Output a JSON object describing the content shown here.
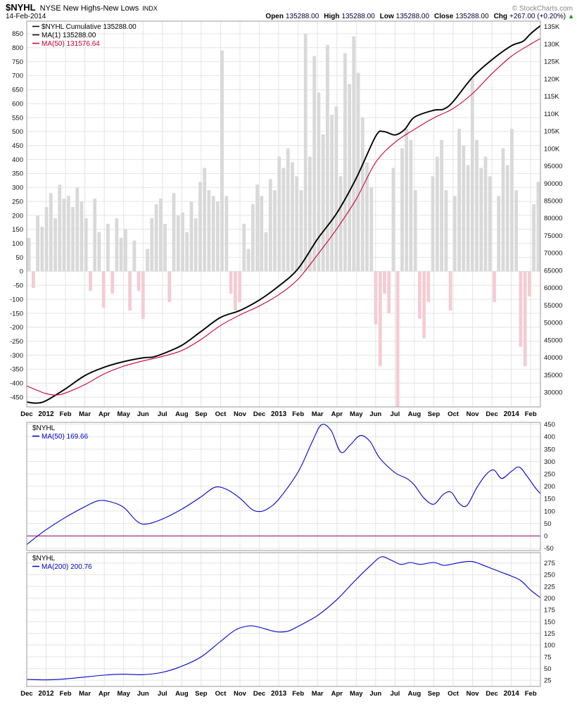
{
  "header": {
    "symbol": "$NYHL",
    "description": "NYSE New Highs-New Lows",
    "exchange": "INDX",
    "date": "14-Feb-2014",
    "copyright": "© StockCharts.com",
    "quote": {
      "open_label": "Open",
      "open": "135288.00",
      "high_label": "High",
      "high": "135288.00",
      "low_label": "Low",
      "low": "135288.00",
      "close_label": "Close",
      "close": "135288.00",
      "chg_label": "Chg",
      "chg": "+267.00 (+0.20%)",
      "arrow": "▲"
    }
  },
  "chart_data": {
    "type": "line",
    "x_total_months": 26.5,
    "x_ticks": [
      "Dec",
      "2012",
      "Feb",
      "Mar",
      "Apr",
      "May",
      "Jun",
      "Jul",
      "Aug",
      "Sep",
      "Oct",
      "Nov",
      "Dec",
      "2013",
      "Feb",
      "Mar",
      "Apr",
      "May",
      "Jun",
      "Jul",
      "Aug",
      "Sep",
      "Oct",
      "Nov",
      "Dec",
      "2014",
      "Feb"
    ],
    "x_year_indices": [
      1,
      13,
      25
    ],
    "colors": {
      "grid": "#e4e4e4",
      "border": "#9a9a9a",
      "hist_pos": "#d9d9d9",
      "hist_neg": "#f4ccd4",
      "up": "#009900"
    },
    "panels": [
      {
        "id": "main",
        "axes": {
          "left": {
            "ticks": [
              850,
              800,
              750,
              700,
              650,
              600,
              550,
              500,
              450,
              400,
              350,
              300,
              250,
              200,
              150,
              100,
              50,
              0,
              -50,
              -100,
              -150,
              -200,
              -250,
              -300,
              -350,
              -400,
              -450
            ],
            "domain": [
              -485,
              895
            ]
          },
          "right": {
            "ticks": [
              {
                "label": "135K",
                "value": 135000
              },
              {
                "label": "130K",
                "value": 130000
              },
              {
                "label": "125K",
                "value": 125000
              },
              {
                "label": "120K",
                "value": 120000
              },
              {
                "label": "115K",
                "value": 115000
              },
              {
                "label": "110K",
                "value": 110000
              },
              {
                "label": "105K",
                "value": 105000
              },
              {
                "label": "100K",
                "value": 100000
              },
              {
                "label": "95000",
                "value": 95000
              },
              {
                "label": "90000",
                "value": 90000
              },
              {
                "label": "85000",
                "value": 85000
              },
              {
                "label": "80000",
                "value": 80000
              },
              {
                "label": "75000",
                "value": 75000
              },
              {
                "label": "70000",
                "value": 70000
              },
              {
                "label": "65000",
                "value": 65000
              },
              {
                "label": "60000",
                "value": 60000
              },
              {
                "label": "55000",
                "value": 55000
              },
              {
                "label": "50000",
                "value": 50000
              },
              {
                "label": "45000",
                "value": 45000
              },
              {
                "label": "40000",
                "value": 40000
              },
              {
                "label": "35000",
                "value": 35000
              },
              {
                "label": "30000",
                "value": 30000
              }
            ],
            "domain": [
              25800,
              136600
            ]
          }
        },
        "legend": [
          {
            "label": "$NYHL Cumulative 135288.00",
            "color": "#000000"
          },
          {
            "label": "MA(1) 135288.00",
            "color": "#000000"
          },
          {
            "label": "MA(50) 131576.64",
            "color": "#cc0033"
          }
        ],
        "histogram": {
          "axis": "left",
          "values": [
            120,
            -60,
            200,
            160,
            230,
            280,
            190,
            310,
            260,
            270,
            230,
            300,
            250,
            190,
            -70,
            260,
            140,
            -130,
            170,
            -80,
            190,
            120,
            150,
            -140,
            110,
            -70,
            -170,
            80,
            190,
            240,
            260,
            170,
            -110,
            280,
            200,
            210,
            140,
            250,
            190,
            320,
            370,
            290,
            270,
            250,
            790,
            270,
            -80,
            -140,
            -110,
            170,
            80,
            240,
            310,
            270,
            140,
            330,
            290,
            410,
            370,
            440,
            390,
            340,
            290,
            850,
            410,
            770,
            640,
            490,
            810,
            560,
            590,
            340,
            780,
            670,
            840,
            710,
            550,
            390,
            300,
            -190,
            -340,
            -80,
            -150,
            370,
            -500,
            440,
            510,
            470,
            290,
            -170,
            -240,
            -110,
            340,
            410,
            470,
            290,
            -140,
            270,
            510,
            450,
            380,
            690,
            470,
            370,
            410,
            340,
            -110,
            270,
            440,
            380,
            510,
            290,
            -270,
            -340,
            -90,
            240,
            320
          ]
        },
        "series": [
          {
            "name": "nyhl-cumulative",
            "axis": "right",
            "color": "#000000",
            "width": 1.9,
            "points": [
              [
                0,
                27200
              ],
              [
                0.5,
                26900
              ],
              [
                1,
                27600
              ],
              [
                2,
                31000
              ],
              [
                3,
                34800
              ],
              [
                4,
                37200
              ],
              [
                5,
                38800
              ],
              [
                6,
                39900
              ],
              [
                6.5,
                40100
              ],
              [
                7,
                41000
              ],
              [
                8,
                43500
              ],
              [
                9,
                47500
              ],
              [
                10,
                51500
              ],
              [
                11,
                53500
              ],
              [
                12,
                56500
              ],
              [
                13,
                60500
              ],
              [
                14,
                65500
              ],
              [
                15,
                74000
              ],
              [
                16,
                81500
              ],
              [
                17,
                91500
              ],
              [
                18,
                103500
              ],
              [
                18.4,
                104900
              ],
              [
                19,
                103900
              ],
              [
                19.5,
                105500
              ],
              [
                20,
                109000
              ],
              [
                21,
                111000
              ],
              [
                21.5,
                111300
              ],
              [
                22,
                113500
              ],
              [
                23,
                120500
              ],
              [
                24,
                125500
              ],
              [
                25,
                129500
              ],
              [
                25.6,
                130800
              ],
              [
                26,
                133000
              ],
              [
                26.5,
                135288
              ]
            ]
          },
          {
            "name": "ma50-cumulative",
            "axis": "right",
            "color": "#cc0033",
            "width": 1.1,
            "points": [
              [
                0,
                31800
              ],
              [
                0.7,
                30200
              ],
              [
                1,
                29600
              ],
              [
                1.5,
                29200
              ],
              [
                2,
                29800
              ],
              [
                3,
                32200
              ],
              [
                4,
                35300
              ],
              [
                5,
                37500
              ],
              [
                6,
                39000
              ],
              [
                7,
                40300
              ],
              [
                8,
                42000
              ],
              [
                9,
                45200
              ],
              [
                10,
                49200
              ],
              [
                11,
                52200
              ],
              [
                12,
                54800
              ],
              [
                13,
                58000
              ],
              [
                14,
                62500
              ],
              [
                15,
                69500
              ],
              [
                16,
                77000
              ],
              [
                17,
                85500
              ],
              [
                18,
                96000
              ],
              [
                19,
                101800
              ],
              [
                20,
                105500
              ],
              [
                21,
                108800
              ],
              [
                22,
                111500
              ],
              [
                23,
                115800
              ],
              [
                24,
                121500
              ],
              [
                25,
                126500
              ],
              [
                26,
                130000
              ],
              [
                26.5,
                131577
              ]
            ]
          }
        ]
      },
      {
        "id": "mid",
        "axes": {
          "right": {
            "ticks": [
              450,
              400,
              350,
              300,
              250,
              200,
              150,
              100,
              50,
              0,
              -50
            ],
            "domain": [
              -59,
              458
            ]
          }
        },
        "zero_line": {
          "value": 0,
          "color": "#990066"
        },
        "legend_title": "$NYHL",
        "legend": [
          {
            "label": "MA(50) 169.66",
            "color": "#0000cc"
          }
        ],
        "series": [
          {
            "name": "nyhl-ma50",
            "axis": "right",
            "color": "#0000cc",
            "width": 1.1,
            "points": [
              [
                0,
                -35
              ],
              [
                0.4,
                -10
              ],
              [
                1,
                25
              ],
              [
                2,
                75
              ],
              [
                3,
                118
              ],
              [
                3.7,
                142
              ],
              [
                4.3,
                138
              ],
              [
                5,
                115
              ],
              [
                5.7,
                58
              ],
              [
                6.2,
                48
              ],
              [
                7,
                68
              ],
              [
                8,
                108
              ],
              [
                9,
                158
              ],
              [
                9.7,
                196
              ],
              [
                10.3,
                188
              ],
              [
                11,
                152
              ],
              [
                11.6,
                108
              ],
              [
                12,
                98
              ],
              [
                12.4,
                108
              ],
              [
                13,
                148
              ],
              [
                14,
                258
              ],
              [
                14.7,
                375
              ],
              [
                15.2,
                448
              ],
              [
                15.7,
                425
              ],
              [
                16.2,
                338
              ],
              [
                16.7,
                368
              ],
              [
                17.2,
                405
              ],
              [
                17.7,
                382
              ],
              [
                18.2,
                315
              ],
              [
                19,
                255
              ],
              [
                19.6,
                232
              ],
              [
                20,
                205
              ],
              [
                20.5,
                152
              ],
              [
                21,
                128
              ],
              [
                21.5,
                168
              ],
              [
                21.9,
                176
              ],
              [
                22.3,
                132
              ],
              [
                22.7,
                122
              ],
              [
                23.2,
                192
              ],
              [
                23.7,
                248
              ],
              [
                24.1,
                266
              ],
              [
                24.5,
                232
              ],
              [
                25,
                260
              ],
              [
                25.4,
                278
              ],
              [
                25.8,
                242
              ],
              [
                26.2,
                198
              ],
              [
                26.5,
                170
              ]
            ]
          }
        ]
      },
      {
        "id": "low",
        "axes": {
          "right": {
            "ticks": [
              275,
              250,
              225,
              200,
              175,
              150,
              125,
              100,
              75,
              50,
              25
            ],
            "domain": [
              12,
              297
            ]
          }
        },
        "legend_title": "$NYHL",
        "legend": [
          {
            "label": "MA(200) 200.76",
            "color": "#0000cc"
          }
        ],
        "series": [
          {
            "name": "nyhl-ma200",
            "axis": "right",
            "color": "#0000cc",
            "width": 1.1,
            "points": [
              [
                0,
                27
              ],
              [
                1,
                26
              ],
              [
                2,
                28
              ],
              [
                3,
                32
              ],
              [
                4,
                36
              ],
              [
                5,
                38
              ],
              [
                6,
                37
              ],
              [
                7,
                42
              ],
              [
                8,
                55
              ],
              [
                9,
                75
              ],
              [
                10,
                108
              ],
              [
                10.8,
                133
              ],
              [
                11.5,
                141
              ],
              [
                12,
                138
              ],
              [
                12.6,
                131
              ],
              [
                13,
                128
              ],
              [
                13.5,
                130
              ],
              [
                14,
                140
              ],
              [
                15,
                163
              ],
              [
                16,
                197
              ],
              [
                17,
                240
              ],
              [
                17.8,
                272
              ],
              [
                18.3,
                288
              ],
              [
                18.8,
                281
              ],
              [
                19.3,
                272
              ],
              [
                19.8,
                276
              ],
              [
                20.3,
                272
              ],
              [
                21,
                276
              ],
              [
                21.5,
                270
              ],
              [
                22,
                273
              ],
              [
                22.5,
                277
              ],
              [
                23,
                278
              ],
              [
                23.5,
                271
              ],
              [
                24,
                263
              ],
              [
                24.5,
                255
              ],
              [
                25,
                247
              ],
              [
                25.5,
                237
              ],
              [
                26,
                217
              ],
              [
                26.5,
                201
              ]
            ]
          }
        ]
      }
    ]
  }
}
